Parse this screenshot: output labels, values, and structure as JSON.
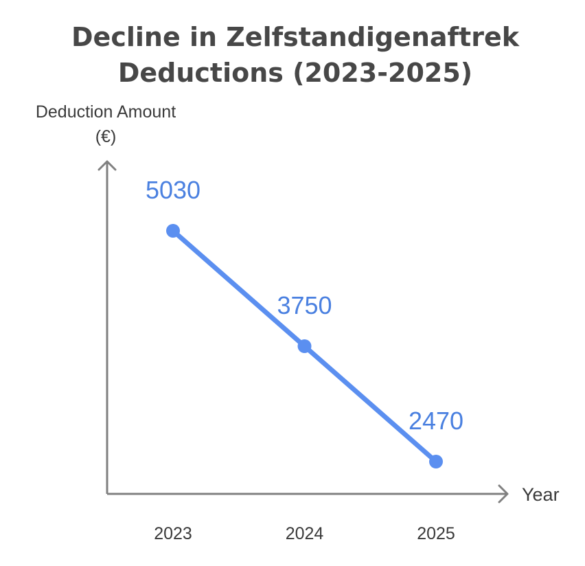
{
  "chart_data": {
    "type": "line",
    "title": [
      "Decline in Zelfstandigenaftrek",
      "Deductions (2023-2025)"
    ],
    "ylabel": [
      "Deduction Amount",
      "(€)"
    ],
    "xlabel": "Year",
    "categories": [
      "2023",
      "2024",
      "2025"
    ],
    "series": [
      {
        "values": [
          5030,
          3750,
          2470
        ],
        "labels": [
          "5030",
          "3750",
          "2470"
        ]
      }
    ],
    "ylim": [
      1250,
      5500
    ],
    "grid": false,
    "legend": "none",
    "colors": {
      "line": "#5b8ff0",
      "point": "#5b8ff0",
      "label": "#4a80e0",
      "axis": "#808080",
      "text": "#3a3a3a",
      "title": "#474747"
    }
  }
}
